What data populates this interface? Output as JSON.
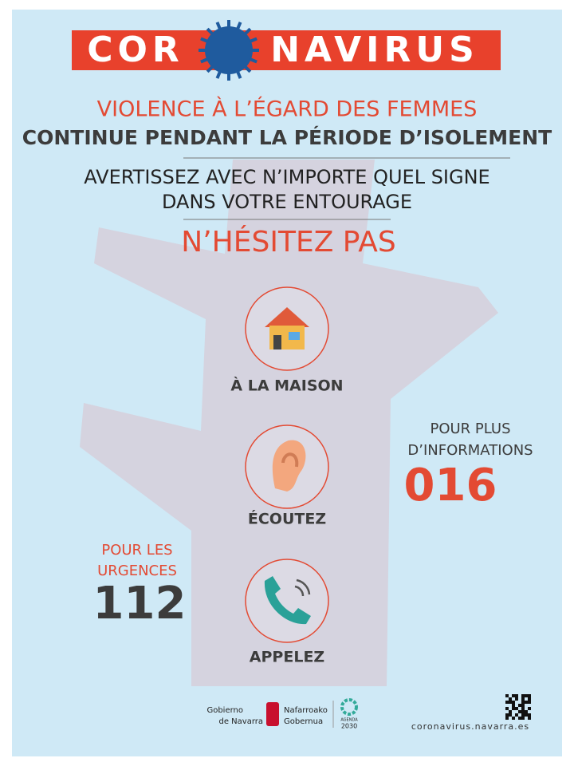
{
  "banner": {
    "left": "COR",
    "right": "NAVIRUS"
  },
  "headline": {
    "line1": "VIOLENCE À L’ÉGARD DES FEMMES",
    "line2": "CONTINUE PENDANT LA PÉRIODE D’ISOLEMENT"
  },
  "advice": {
    "line1": "AVERTISSEZ AVEC N’IMPORTE QUEL SIGNE",
    "line2": "DANS VOTRE ENTOURAGE"
  },
  "call_to_action": "N’HÉSITEZ PAS",
  "items": [
    {
      "label": "À LA MAISON"
    },
    {
      "label": "ÉCOUTEZ"
    },
    {
      "label": "APPELEZ"
    }
  ],
  "info": {
    "line1": "POUR PLUS",
    "line2": "D’INFORMATIONS",
    "number": "016"
  },
  "emergency": {
    "line1": "POUR LES",
    "line2": "URGENCES",
    "number": "112"
  },
  "footer": {
    "gov_es_line1": "Gobierno",
    "gov_es_line2": "de Navarra",
    "gov_eu_line1": "Nafarroako",
    "gov_eu_line2": "Gobernua",
    "agenda_line1": "AGENDA",
    "agenda_line2": "2030",
    "url": "coronavirus.navarra.es"
  }
}
